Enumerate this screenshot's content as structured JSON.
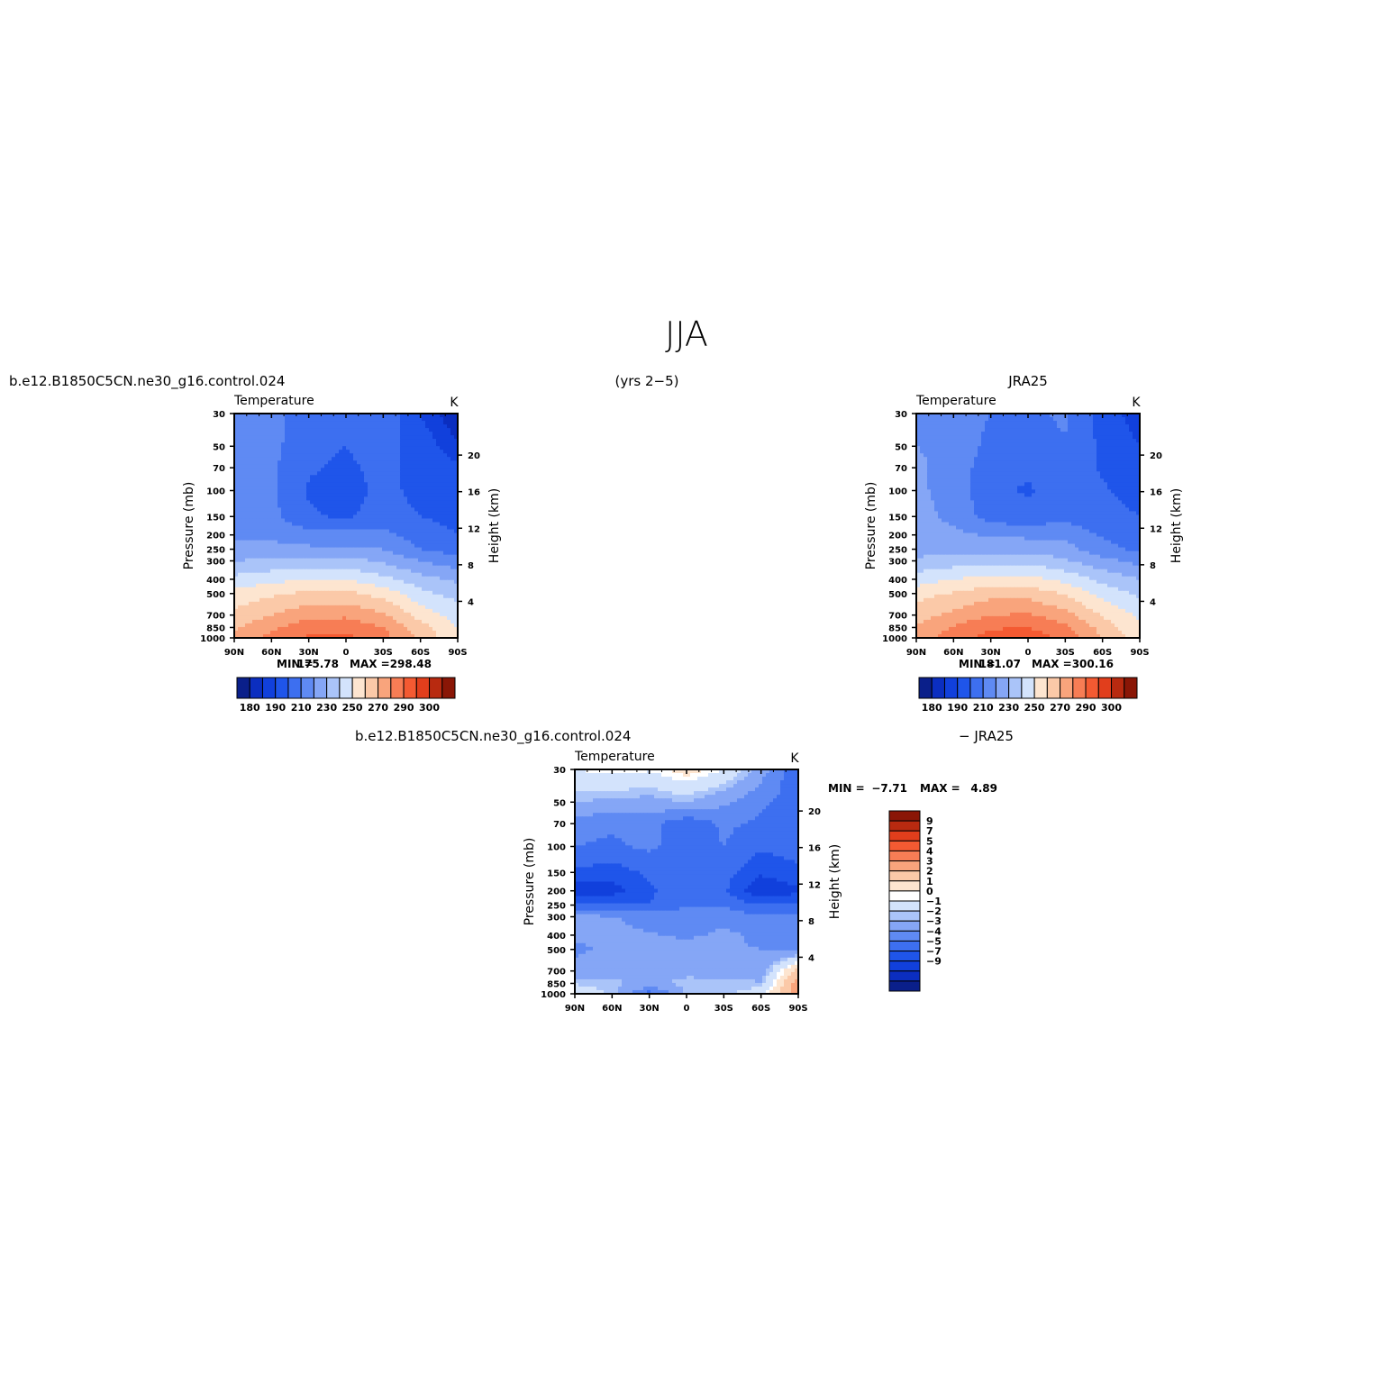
{
  "figure": {
    "title": "JJA",
    "left_header": "b.e12.B1850C5CN.ne30_g16.control.024",
    "center_header": "(yrs 2−5)",
    "right_header": "JRA25",
    "diff_header_left": "b.e12.B1850C5CN.ne30_g16.control.024",
    "diff_header_right": "− JRA25"
  },
  "colors": {
    "frame": "#000000",
    "abs_palette": [
      "#0a1f8a",
      "#0b2ec0",
      "#1140dc",
      "#1f55ea",
      "#3d6ff0",
      "#5f8af3",
      "#85a6f6",
      "#aac4f9",
      "#d3e3fc",
      "#fde5d0",
      "#fbc9a8",
      "#f9a47c",
      "#f77d55",
      "#f45a32",
      "#e13e1c",
      "#b82a10",
      "#8a1606"
    ],
    "diff_palette": [
      "#0a1f8a",
      "#0b2ec0",
      "#1140dc",
      "#1f55ea",
      "#3d6ff0",
      "#5f8af3",
      "#85a6f6",
      "#aac4f9",
      "#d3e3fc",
      "#ffffff",
      "#fde5d0",
      "#fbc9a8",
      "#f9a47c",
      "#f77d55",
      "#f45a32",
      "#e13e1c",
      "#b82a10",
      "#8a1606"
    ]
  },
  "chart_data": [
    {
      "type": "heatmap",
      "panel": "model",
      "title": "Temperature",
      "units": "K",
      "ylabel": "Pressure (mb)",
      "ylabel_right": "Height (km)",
      "x_ticks": [
        "90N",
        "60N",
        "30N",
        "0",
        "30S",
        "60S",
        "90S"
      ],
      "y_ticks": [
        "30",
        "50",
        "70",
        "100",
        "150",
        "200",
        "250",
        "300",
        "400",
        "500",
        "700",
        "850",
        "1000"
      ],
      "y_right_ticks": [
        "4",
        "8",
        "12",
        "16",
        "20"
      ],
      "min_label": "MIN =",
      "min_value": "175.78",
      "max_label": "MAX =",
      "max_value": "298.48",
      "colorbar_labels": [
        "180",
        "190",
        "210",
        "230",
        "250",
        "270",
        "290",
        "300"
      ],
      "grid": {
        "lat": [
          90,
          60,
          30,
          0,
          -30,
          -60,
          -90
        ],
        "plev": [
          30,
          50,
          70,
          100,
          150,
          200,
          250,
          300,
          400,
          500,
          700,
          850,
          1000
        ]
      },
      "values": [
        [
          213,
          212,
          207,
          205,
          209,
          190,
          180
        ],
        [
          216,
          213,
          203,
          200,
          205,
          194,
          186
        ],
        [
          217,
          212,
          201,
          198,
          203,
          196,
          191
        ],
        [
          218,
          212,
          199,
          197,
          202,
          198,
          194
        ],
        [
          220,
          213,
          201,
          199,
          203,
          200,
          197
        ],
        [
          218,
          218,
          214,
          214,
          213,
          205,
          200
        ],
        [
          222,
          223,
          222,
          222,
          220,
          210,
          205
        ],
        [
          230,
          232,
          234,
          234,
          228,
          220,
          214
        ],
        [
          243,
          247,
          250,
          250,
          243,
          234,
          228
        ],
        [
          253,
          258,
          262,
          263,
          256,
          243,
          236
        ],
        [
          263,
          270,
          277,
          278,
          272,
          256,
          246
        ],
        [
          269,
          278,
          286,
          287,
          280,
          264,
          249
        ],
        [
          272,
          283,
          292,
          293,
          284,
          268,
          252
        ]
      ]
    },
    {
      "type": "heatmap",
      "panel": "reference",
      "title": "Temperature",
      "units": "K",
      "ylabel": "Pressure (mb)",
      "ylabel_right": "Height (km)",
      "x_ticks": [
        "90N",
        "60N",
        "30N",
        "0",
        "30S",
        "60S",
        "90S"
      ],
      "y_ticks": [
        "30",
        "50",
        "70",
        "100",
        "150",
        "200",
        "250",
        "300",
        "400",
        "500",
        "700",
        "850",
        "1000"
      ],
      "y_right_ticks": [
        "4",
        "8",
        "12",
        "16",
        "20"
      ],
      "min_label": "MIN =",
      "min_value": "181.07",
      "max_label": "MAX =",
      "max_value": "300.16",
      "colorbar_labels": [
        "180",
        "190",
        "210",
        "230",
        "250",
        "270",
        "290",
        "300"
      ],
      "grid": {
        "lat": [
          90,
          60,
          30,
          0,
          -30,
          -60,
          -90
        ],
        "plev": [
          30,
          50,
          70,
          100,
          150,
          200,
          250,
          300,
          400,
          500,
          700,
          850,
          1000
        ]
      },
      "values": [
        [
          218,
          216,
          210,
          208,
          212,
          195,
          185
        ],
        [
          220,
          217,
          207,
          204,
          209,
          198,
          190
        ],
        [
          222,
          216,
          204,
          201,
          206,
          199,
          193
        ],
        [
          222,
          216,
          202,
          199,
          205,
          201,
          197
        ],
        [
          223,
          218,
          205,
          203,
          207,
          203,
          200
        ],
        [
          222,
          222,
          219,
          218,
          217,
          209,
          204
        ],
        [
          225,
          227,
          226,
          226,
          224,
          213,
          208
        ],
        [
          232,
          235,
          237,
          237,
          231,
          223,
          217
        ],
        [
          245,
          250,
          254,
          254,
          247,
          237,
          230
        ],
        [
          256,
          261,
          266,
          266,
          259,
          246,
          238
        ],
        [
          265,
          273,
          280,
          281,
          274,
          259,
          248
        ],
        [
          271,
          281,
          289,
          290,
          283,
          266,
          251
        ],
        [
          274,
          286,
          294,
          296,
          287,
          270,
          254
        ]
      ]
    },
    {
      "type": "heatmap",
      "panel": "difference",
      "title": "Temperature",
      "units": "K",
      "ylabel": "Pressure (mb)",
      "ylabel_right": "Height (km)",
      "x_ticks": [
        "90N",
        "60N",
        "30N",
        "0",
        "30S",
        "60S",
        "90S"
      ],
      "y_ticks": [
        "30",
        "50",
        "70",
        "100",
        "150",
        "200",
        "250",
        "300",
        "400",
        "500",
        "700",
        "850",
        "1000"
      ],
      "y_right_ticks": [
        "4",
        "8",
        "12",
        "16",
        "20"
      ],
      "min_label": "MIN =",
      "min_value": "−7.71",
      "max_label": "MAX =",
      "max_value": "4.89",
      "colorbar_labels": [
        "9",
        "7",
        "5",
        "4",
        "3",
        "2",
        "1",
        "0",
        "−1",
        "−2",
        "−3",
        "−4",
        "−5",
        "−7",
        "−9"
      ],
      "grid": {
        "lat": [
          90,
          60,
          30,
          0,
          -30,
          -60,
          -90
        ],
        "plev": [
          30,
          50,
          70,
          100,
          150,
          200,
          250,
          300,
          400,
          500,
          700,
          850,
          1000
        ]
      },
      "values": [
        [
          0.5,
          0.8,
          0.6,
          1.5,
          0.5,
          -1.5,
          -4.0
        ],
        [
          -1.0,
          -1.2,
          -1.4,
          -1.0,
          -1.8,
          -2.8,
          -3.5
        ],
        [
          -2.5,
          -2.8,
          -2.6,
          -3.8,
          -2.8,
          -3.2,
          -3.5
        ],
        [
          -3.0,
          -3.2,
          -2.8,
          -3.5,
          -3.0,
          -3.8,
          -3.6
        ],
        [
          -4.2,
          -4.5,
          -3.8,
          -3.2,
          -3.6,
          -4.8,
          -4.2
        ],
        [
          -6.0,
          -5.5,
          -4.2,
          -3.2,
          -3.8,
          -6.0,
          -5.2
        ],
        [
          -4.0,
          -3.8,
          -4.0,
          -3.0,
          -3.2,
          -4.0,
          -3.8
        ],
        [
          -1.8,
          -1.9,
          -2.4,
          -2.6,
          -2.3,
          -2.8,
          -2.8
        ],
        [
          -1.8,
          -1.8,
          -1.9,
          -2.2,
          -1.8,
          -2.2,
          -2.4
        ],
        [
          -2.2,
          -1.8,
          -1.5,
          -1.4,
          -1.9,
          -2.0,
          -2.3
        ],
        [
          -1.6,
          -1.4,
          -1.3,
          -1.2,
          -1.3,
          -1.6,
          2.5
        ],
        [
          -0.6,
          -0.8,
          -1.2,
          -0.8,
          -0.8,
          -0.9,
          3.8
        ],
        [
          0.5,
          -0.7,
          -3.5,
          -0.9,
          -0.7,
          0.1,
          4.0
        ]
      ]
    }
  ]
}
